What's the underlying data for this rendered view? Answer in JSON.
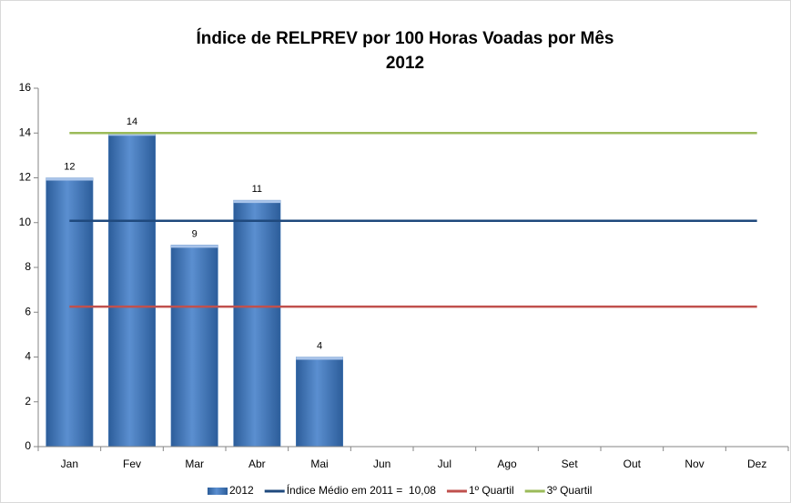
{
  "chart_data": {
    "type": "bar",
    "title": "Índice de RELPREV por 100 Horas Voadas por Mês",
    "subtitle": "2012",
    "categories": [
      "Jan",
      "Fev",
      "Mar",
      "Abr",
      "Mai",
      "Jun",
      "Jul",
      "Ago",
      "Set",
      "Out",
      "Nov",
      "Dez"
    ],
    "series": [
      {
        "name": "2012",
        "type": "bar",
        "color": "#4f81bd",
        "values": [
          12,
          14,
          9,
          11,
          4,
          null,
          null,
          null,
          null,
          null,
          null,
          null
        ]
      },
      {
        "name": "Índice Médio em 2011 =  10,08",
        "type": "line",
        "color": "#1f497d",
        "values": [
          10.08,
          10.08,
          10.08,
          10.08,
          10.08,
          10.08,
          10.08,
          10.08,
          10.08,
          10.08,
          10.08,
          10.08
        ]
      },
      {
        "name": "1º Quartil",
        "type": "line",
        "color": "#c0504d",
        "values": [
          6.25,
          6.25,
          6.25,
          6.25,
          6.25,
          6.25,
          6.25,
          6.25,
          6.25,
          6.25,
          6.25,
          6.25
        ]
      },
      {
        "name": "3º Quartil",
        "type": "line",
        "color": "#9bbb59",
        "values": [
          14,
          14,
          14,
          14,
          14,
          14,
          14,
          14,
          14,
          14,
          14,
          14
        ]
      }
    ],
    "ylim": [
      0,
      16
    ],
    "yticks": [
      0,
      2,
      4,
      6,
      8,
      10,
      12,
      14,
      16
    ],
    "grid": false,
    "legend": "bottom"
  }
}
